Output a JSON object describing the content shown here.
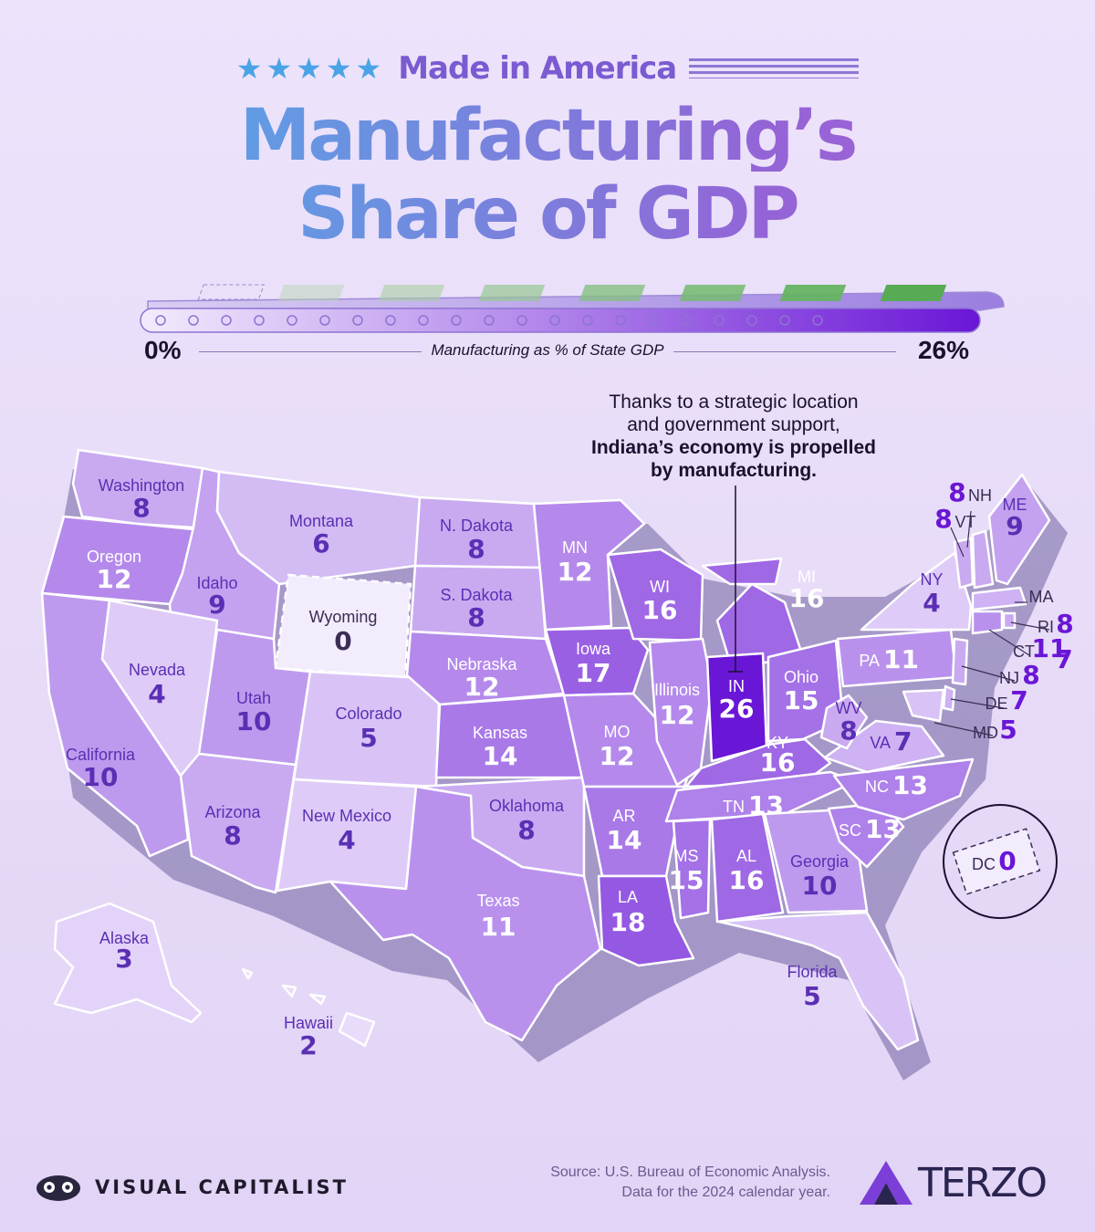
{
  "header": {
    "stars": "★★★★★",
    "kicker": "Made in America",
    "title_line1": "Manufacturing’s",
    "title_line2": "Share of GDP"
  },
  "legend": {
    "min_label": "0%",
    "max_label": "26%",
    "axis_label": "Manufacturing as % of State GDP",
    "scale_max": 26,
    "color_low": "#f3ecfd",
    "color_high": "#6a16d6"
  },
  "annotation": {
    "line1": "Thanks to a strategic location",
    "line2": "and government support,",
    "line3_bold": "Indiana’s economy is propelled",
    "line4_bold": "by manufacturing."
  },
  "states": [
    {
      "id": "WA",
      "label": "Washington",
      "value": 8
    },
    {
      "id": "OR",
      "label": "Oregon",
      "value": 12
    },
    {
      "id": "CA",
      "label": "California",
      "value": 10
    },
    {
      "id": "ID",
      "label": "Idaho",
      "value": 9
    },
    {
      "id": "NV",
      "label": "Nevada",
      "value": 4
    },
    {
      "id": "MT",
      "label": "Montana",
      "value": 6
    },
    {
      "id": "WY",
      "label": "Wyoming",
      "value": 0
    },
    {
      "id": "UT",
      "label": "Utah",
      "value": 10
    },
    {
      "id": "AZ",
      "label": "Arizona",
      "value": 8
    },
    {
      "id": "CO",
      "label": "Colorado",
      "value": 5
    },
    {
      "id": "NM",
      "label": "New Mexico",
      "value": 4
    },
    {
      "id": "ND",
      "label": "N. Dakota",
      "value": 8
    },
    {
      "id": "SD",
      "label": "S. Dakota",
      "value": 8
    },
    {
      "id": "NE",
      "label": "Nebraska",
      "value": 12
    },
    {
      "id": "KS",
      "label": "Kansas",
      "value": 14
    },
    {
      "id": "OK",
      "label": "Oklahoma",
      "value": 8
    },
    {
      "id": "TX",
      "label": "Texas",
      "value": 11
    },
    {
      "id": "MN",
      "label": "MN",
      "value": 12
    },
    {
      "id": "IA",
      "label": "Iowa",
      "value": 17
    },
    {
      "id": "MO",
      "label": "MO",
      "value": 12
    },
    {
      "id": "AR",
      "label": "AR",
      "value": 14
    },
    {
      "id": "LA",
      "label": "LA",
      "value": 18
    },
    {
      "id": "WI",
      "label": "WI",
      "value": 16
    },
    {
      "id": "IL",
      "label": "Illinois",
      "value": 12
    },
    {
      "id": "MI",
      "label": "MI",
      "value": 16
    },
    {
      "id": "IN",
      "label": "IN",
      "value": 26
    },
    {
      "id": "OH",
      "label": "Ohio",
      "value": 15
    },
    {
      "id": "KY",
      "label": "KY",
      "value": 16
    },
    {
      "id": "TN",
      "label": "TN",
      "value": 13
    },
    {
      "id": "MS",
      "label": "MS",
      "value": 15
    },
    {
      "id": "AL",
      "label": "AL",
      "value": 16
    },
    {
      "id": "GA",
      "label": "Georgia",
      "value": 10
    },
    {
      "id": "FL",
      "label": "Florida",
      "value": 5
    },
    {
      "id": "SC",
      "label": "SC",
      "value": 13
    },
    {
      "id": "NC",
      "label": "NC",
      "value": 13
    },
    {
      "id": "VA",
      "label": "VA",
      "value": 7
    },
    {
      "id": "WV",
      "label": "WV",
      "value": 8
    },
    {
      "id": "PA",
      "label": "PA",
      "value": 11
    },
    {
      "id": "NY",
      "label": "NY",
      "value": 4
    },
    {
      "id": "VT",
      "label": "VT",
      "value": 8
    },
    {
      "id": "NH",
      "label": "NH",
      "value": 8
    },
    {
      "id": "ME",
      "label": "ME",
      "value": 9
    },
    {
      "id": "MA",
      "label": "MA",
      "value": 7
    },
    {
      "id": "RI",
      "label": "RI",
      "value": 8
    },
    {
      "id": "CT",
      "label": "CT",
      "value": 11
    },
    {
      "id": "NJ",
      "label": "NJ",
      "value": 8
    },
    {
      "id": "DE",
      "label": "DE",
      "value": 7
    },
    {
      "id": "MD",
      "label": "MD",
      "value": 5
    },
    {
      "id": "DC",
      "label": "DC",
      "value": 0
    },
    {
      "id": "AK",
      "label": "Alaska",
      "value": 3
    },
    {
      "id": "HI",
      "label": "Hawaii",
      "value": 2
    }
  ],
  "footer": {
    "brand": "VISUAL CAPITALIST",
    "source_line1": "Source: U.S. Bureau of Economic Analysis.",
    "source_line2": "Data for the 2024 calendar year.",
    "partner": "TERZO"
  }
}
